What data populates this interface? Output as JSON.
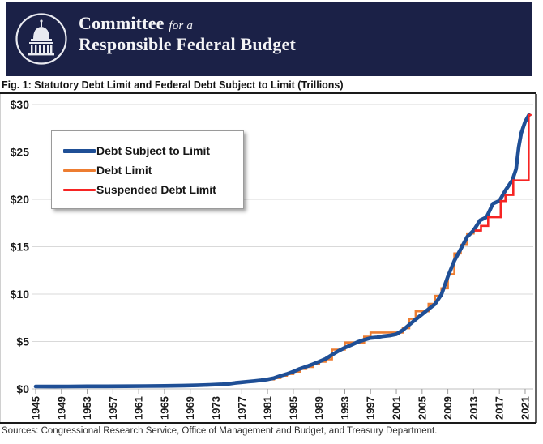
{
  "header": {
    "brand_line1_main": "Committee",
    "brand_line1_sub": "for a",
    "brand_line2": "Responsible Federal Budget",
    "logo": "capitol-dome-in-circle",
    "background_color": "#1b2147"
  },
  "figure": {
    "source_note": "Sources: Congressional Research Service, Office of Management and Budget, and Treasury Department."
  },
  "chart_data": {
    "type": "line",
    "title": "Fig. 1: Statutory Debt Limit and Federal Debt Subject to Limit (Trillions)",
    "xlabel": "",
    "ylabel": "",
    "xlim": [
      1945,
      2022.3
    ],
    "ylim": [
      0,
      30
    ],
    "x_ticks": [
      1945,
      1949,
      1953,
      1957,
      1961,
      1965,
      1969,
      1973,
      1977,
      1981,
      1985,
      1989,
      1993,
      1997,
      2001,
      2005,
      2009,
      2013,
      2017,
      2021
    ],
    "y_ticks": [
      0,
      5,
      10,
      15,
      20,
      25,
      30
    ],
    "y_tick_labels": [
      "$0",
      "$5",
      "$10",
      "$15",
      "$20",
      "$25",
      "$30"
    ],
    "grid": "horizontal",
    "gridline_color": "#d9d9d9",
    "legend_position": "top-left",
    "series": [
      {
        "name": "Debt Subject to Limit",
        "color": "#1f4f96",
        "width": 4.6,
        "mode": "linear",
        "points": [
          [
            1945,
            0.26
          ],
          [
            1948,
            0.25
          ],
          [
            1950,
            0.26
          ],
          [
            1953,
            0.27
          ],
          [
            1956,
            0.27
          ],
          [
            1959,
            0.285
          ],
          [
            1962,
            0.3
          ],
          [
            1965,
            0.32
          ],
          [
            1968,
            0.35
          ],
          [
            1970,
            0.38
          ],
          [
            1972,
            0.43
          ],
          [
            1974,
            0.49
          ],
          [
            1975,
            0.54
          ],
          [
            1976,
            0.63
          ],
          [
            1977,
            0.7
          ],
          [
            1978,
            0.77
          ],
          [
            1979,
            0.83
          ],
          [
            1980,
            0.91
          ],
          [
            1981,
            1.0
          ],
          [
            1982,
            1.14
          ],
          [
            1983,
            1.38
          ],
          [
            1984,
            1.57
          ],
          [
            1985,
            1.82
          ],
          [
            1986,
            2.11
          ],
          [
            1987,
            2.34
          ],
          [
            1988,
            2.6
          ],
          [
            1989,
            2.87
          ],
          [
            1990,
            3.16
          ],
          [
            1991,
            3.6
          ],
          [
            1992,
            4.0
          ],
          [
            1993,
            4.35
          ],
          [
            1994,
            4.64
          ],
          [
            1995,
            4.95
          ],
          [
            1996,
            5.18
          ],
          [
            1997,
            5.37
          ],
          [
            1998,
            5.44
          ],
          [
            1999,
            5.56
          ],
          [
            2000,
            5.63
          ],
          [
            2001,
            5.77
          ],
          [
            2002,
            6.2
          ],
          [
            2003,
            6.76
          ],
          [
            2004,
            7.33
          ],
          [
            2005,
            7.87
          ],
          [
            2006,
            8.42
          ],
          [
            2007,
            8.95
          ],
          [
            2008,
            9.96
          ],
          [
            2009,
            11.85
          ],
          [
            2010,
            13.51
          ],
          [
            2011,
            14.75
          ],
          [
            2012,
            16.03
          ],
          [
            2013,
            16.72
          ],
          [
            2014,
            17.78
          ],
          [
            2015,
            18.11
          ],
          [
            2016,
            19.54
          ],
          [
            2017,
            19.84
          ],
          [
            2018,
            21.0
          ],
          [
            2019,
            22.0
          ],
          [
            2019.6,
            23.2
          ],
          [
            2020,
            25.5
          ],
          [
            2020.4,
            27.0
          ],
          [
            2021,
            28.2
          ],
          [
            2021.6,
            28.9
          ]
        ]
      },
      {
        "name": "Debt Limit",
        "color": "#ed7d31",
        "width": 2.6,
        "mode": "step-after",
        "points": [
          [
            1945,
            0.3
          ],
          [
            1946,
            0.275
          ],
          [
            1954,
            0.281
          ],
          [
            1955,
            0.275
          ],
          [
            1958,
            0.288
          ],
          [
            1959,
            0.295
          ],
          [
            1960,
            0.293
          ],
          [
            1961,
            0.298
          ],
          [
            1962,
            0.308
          ],
          [
            1963,
            0.31
          ],
          [
            1964,
            0.324
          ],
          [
            1965,
            0.328
          ],
          [
            1966,
            0.33
          ],
          [
            1967,
            0.336
          ],
          [
            1968,
            0.365
          ],
          [
            1969,
            0.377
          ],
          [
            1970,
            0.395
          ],
          [
            1971,
            0.43
          ],
          [
            1972,
            0.45
          ],
          [
            1973,
            0.465
          ],
          [
            1974,
            0.495
          ],
          [
            1975,
            0.577
          ],
          [
            1976,
            0.682
          ],
          [
            1977,
            0.752
          ],
          [
            1978,
            0.798
          ],
          [
            1979,
            0.879
          ],
          [
            1980,
            0.925
          ],
          [
            1981,
            0.999
          ],
          [
            1982,
            1.143
          ],
          [
            1983,
            1.389
          ],
          [
            1984,
            1.573
          ],
          [
            1985,
            1.824
          ],
          [
            1986,
            2.111
          ],
          [
            1987,
            2.32
          ],
          [
            1988,
            2.6
          ],
          [
            1989,
            2.87
          ],
          [
            1990,
            3.123
          ],
          [
            1991,
            4.145
          ],
          [
            1993,
            4.9
          ],
          [
            1996,
            5.5
          ],
          [
            1997,
            5.95
          ],
          [
            2002,
            6.4
          ],
          [
            2003,
            7.384
          ],
          [
            2004,
            8.184
          ],
          [
            2006,
            8.965
          ],
          [
            2007,
            9.815
          ],
          [
            2008,
            10.615
          ],
          [
            2009,
            12.104
          ],
          [
            2010,
            14.294
          ],
          [
            2011,
            15.194
          ],
          [
            2012,
            16.394
          ],
          [
            2013,
            16.699
          ],
          [
            2013.9,
            16.699
          ]
        ]
      },
      {
        "name": "Suspended Debt Limit",
        "color": "#f62423",
        "width": 2.6,
        "mode": "step-after",
        "points": [
          [
            2013.3,
            16.7
          ],
          [
            2014.15,
            17.2
          ],
          [
            2015.25,
            18.11
          ],
          [
            2017.2,
            19.81
          ],
          [
            2017.95,
            20.46
          ],
          [
            2019.15,
            21.99
          ],
          [
            2021.55,
            28.9
          ],
          [
            2021.85,
            28.9
          ]
        ]
      }
    ]
  }
}
